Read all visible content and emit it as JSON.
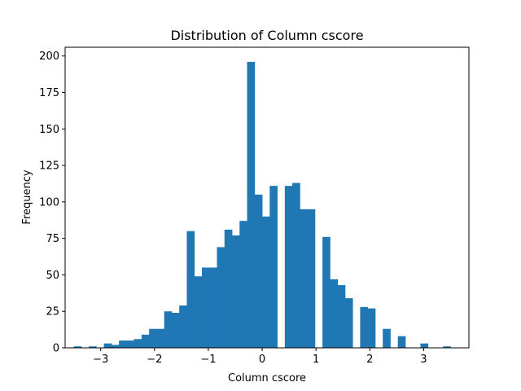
{
  "chart_data": {
    "type": "bar",
    "title": "Distribution of Column cscore",
    "xlabel": "Column cscore",
    "ylabel": "Frequency",
    "xlim": [
      -3.66,
      3.84
    ],
    "ylim": [
      0,
      206
    ],
    "x_ticks": [
      -3,
      -2,
      -1,
      0,
      1,
      2,
      3
    ],
    "x_tick_labels": [
      "−3",
      "−2",
      "−1",
      "0",
      "1",
      "2",
      "3"
    ],
    "y_ticks": [
      0,
      25,
      50,
      75,
      100,
      125,
      150,
      175,
      200
    ],
    "y_tick_labels": [
      "0",
      "25",
      "50",
      "75",
      "100",
      "125",
      "150",
      "175",
      "200"
    ],
    "bin_start": -3.5,
    "bin_width": 0.14,
    "values": [
      1,
      0,
      1,
      0,
      3,
      2,
      5,
      5,
      6,
      9,
      13,
      13,
      25,
      24,
      29,
      80,
      49,
      55,
      55,
      69,
      81,
      77,
      87,
      196,
      105,
      90,
      111,
      0,
      111,
      113,
      95,
      95,
      0,
      76,
      47,
      43,
      34,
      0,
      28,
      27,
      0,
      13,
      0,
      8,
      0,
      0,
      3,
      0,
      0,
      1
    ],
    "color": "#1f77b4",
    "grid": false,
    "legend": "none"
  }
}
